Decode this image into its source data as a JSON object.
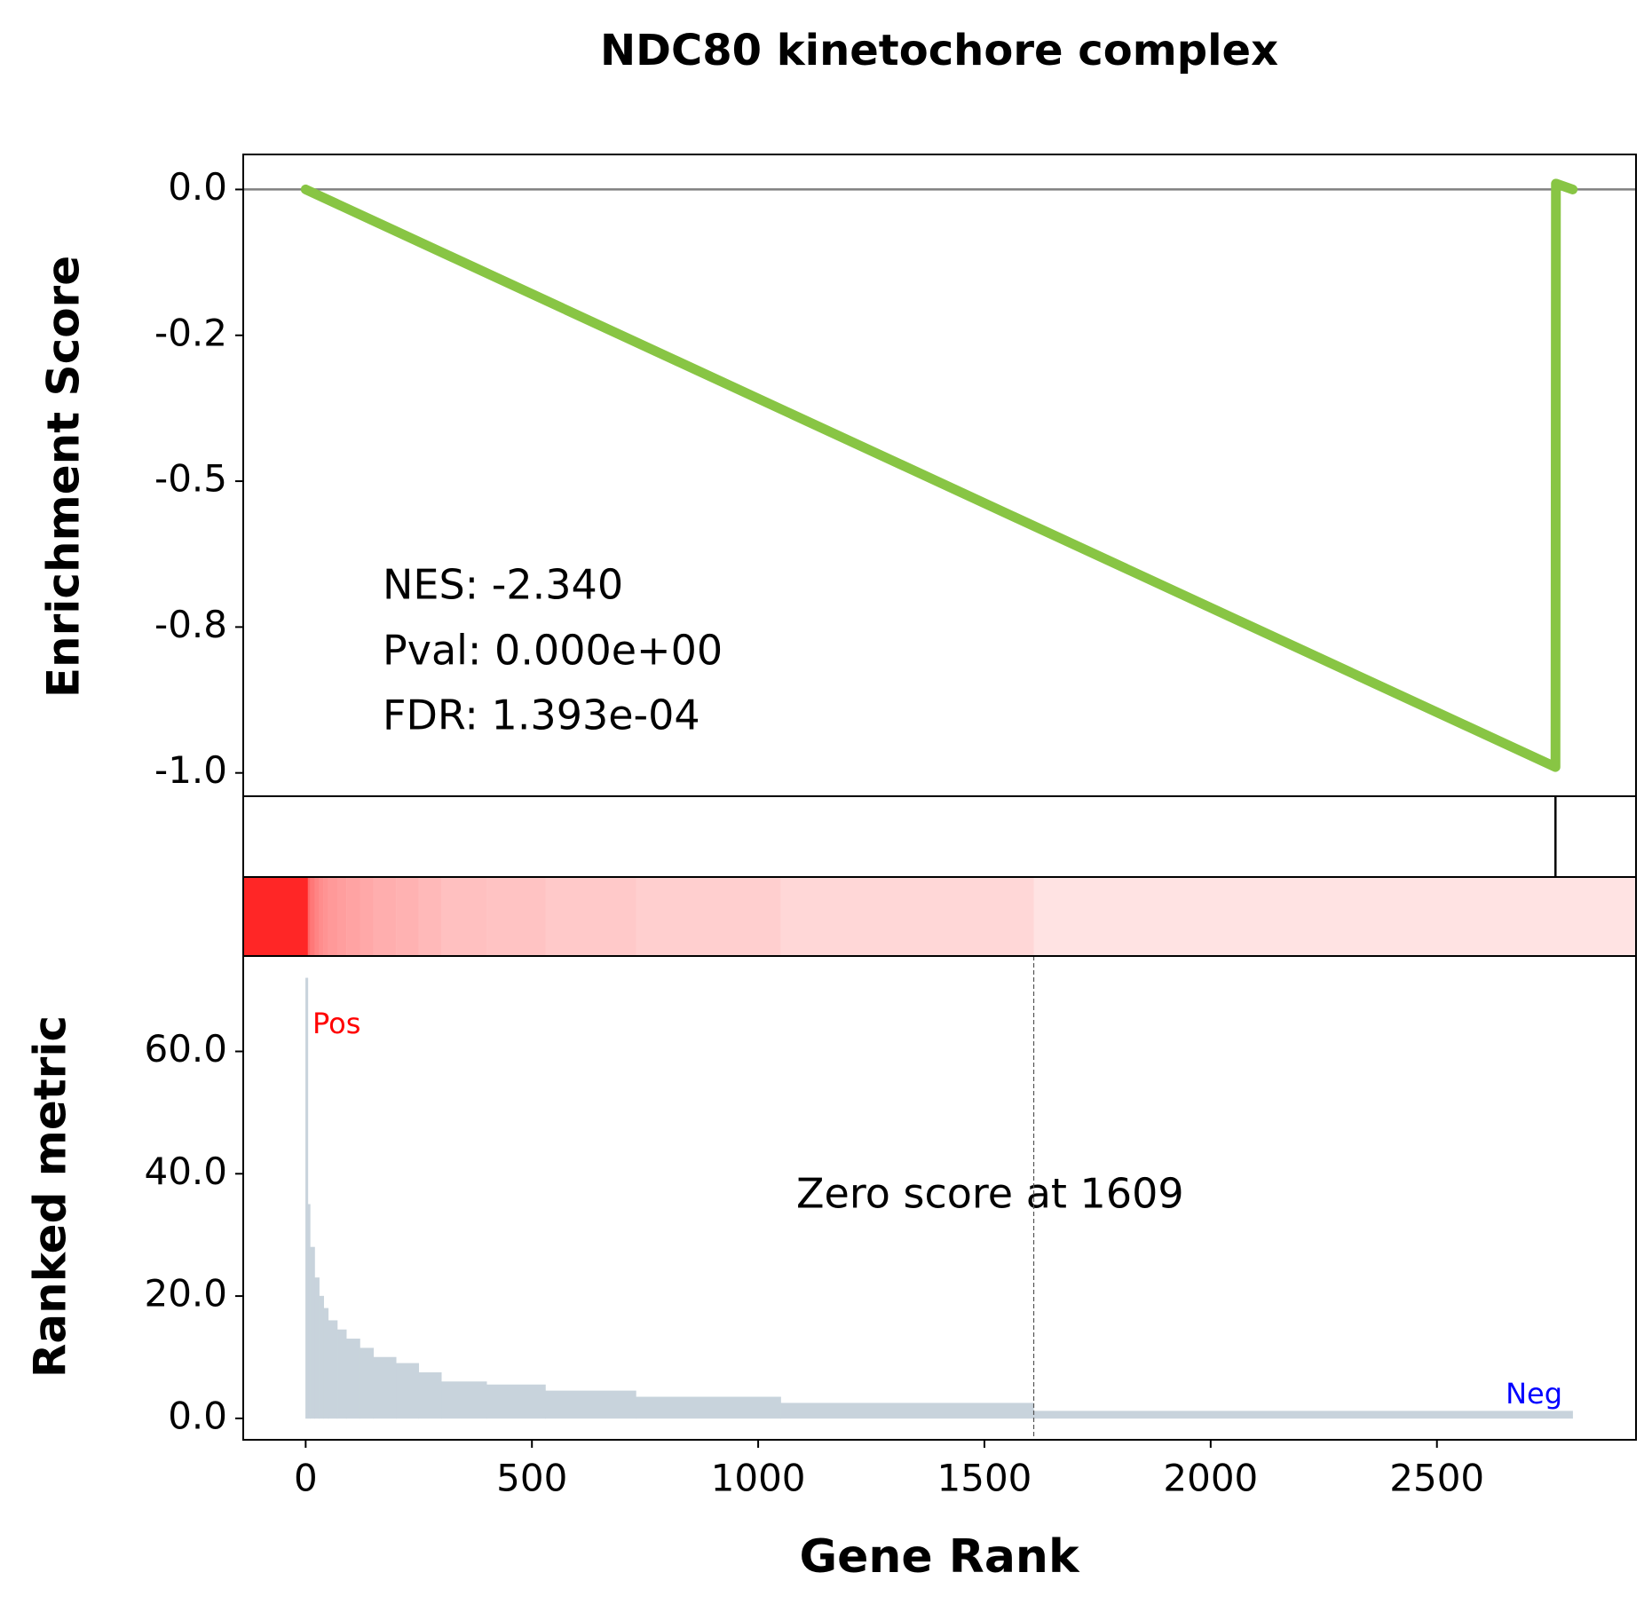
{
  "chart_data": [
    {
      "type": "line",
      "title": "NDC80 kinetochore complex",
      "ylabel": "Enrichment Score",
      "x": [
        0,
        2762,
        2763,
        2800
      ],
      "values": [
        0,
        -0.99,
        0.01,
        0
      ],
      "color": "#88c544",
      "xlim": [
        -138,
        2940
      ],
      "ylim": [
        -1.04,
        0.06
      ],
      "yticks": [
        {
          "value": 0,
          "label": "0.0"
        },
        {
          "value": -0.25,
          "label": "-0.2"
        },
        {
          "value": -0.5,
          "label": "-0.5"
        },
        {
          "value": -0.75,
          "label": "-0.8"
        },
        {
          "value": -1.0,
          "label": "-1.0"
        }
      ],
      "annotations": [
        "NES: -2.340",
        "Pval: 0.000e+00",
        "FDR: 1.393e-04"
      ]
    },
    {
      "type": "rug",
      "x": [
        2762
      ],
      "color": "#000000",
      "xlim": [
        -138,
        2940
      ]
    },
    {
      "type": "histogram",
      "ylabel": "Ranked metric",
      "xlabel": "Gene Rank",
      "bins": [
        0,
        5,
        10,
        20,
        30,
        40,
        50,
        70,
        90,
        120,
        150,
        200,
        250,
        300,
        400,
        530,
        730,
        1050,
        1609,
        2800
      ],
      "values": [
        72,
        35,
        28,
        23,
        20,
        18,
        16,
        14.5,
        13,
        11.5,
        10,
        9,
        7.5,
        6,
        5.5,
        4.5,
        3.5,
        2.5,
        1.2
      ],
      "color": "#c8d3dc",
      "heatmap_color": "#ff0000",
      "xlim": [
        -138,
        2940
      ],
      "ylim": [
        -3.5,
        75.6
      ],
      "xticks": [
        0,
        500,
        1000,
        1500,
        2000,
        2500
      ],
      "yticks": [
        {
          "value": 0,
          "label": "0.0"
        },
        {
          "value": 20,
          "label": "20.0"
        },
        {
          "value": 40,
          "label": "40.0"
        },
        {
          "value": 60,
          "label": "60.0"
        }
      ],
      "zero_score_x": 1609,
      "zero_score_label": "Zero score at 1609",
      "pos_label": "Pos",
      "neg_label": "Neg"
    }
  ]
}
